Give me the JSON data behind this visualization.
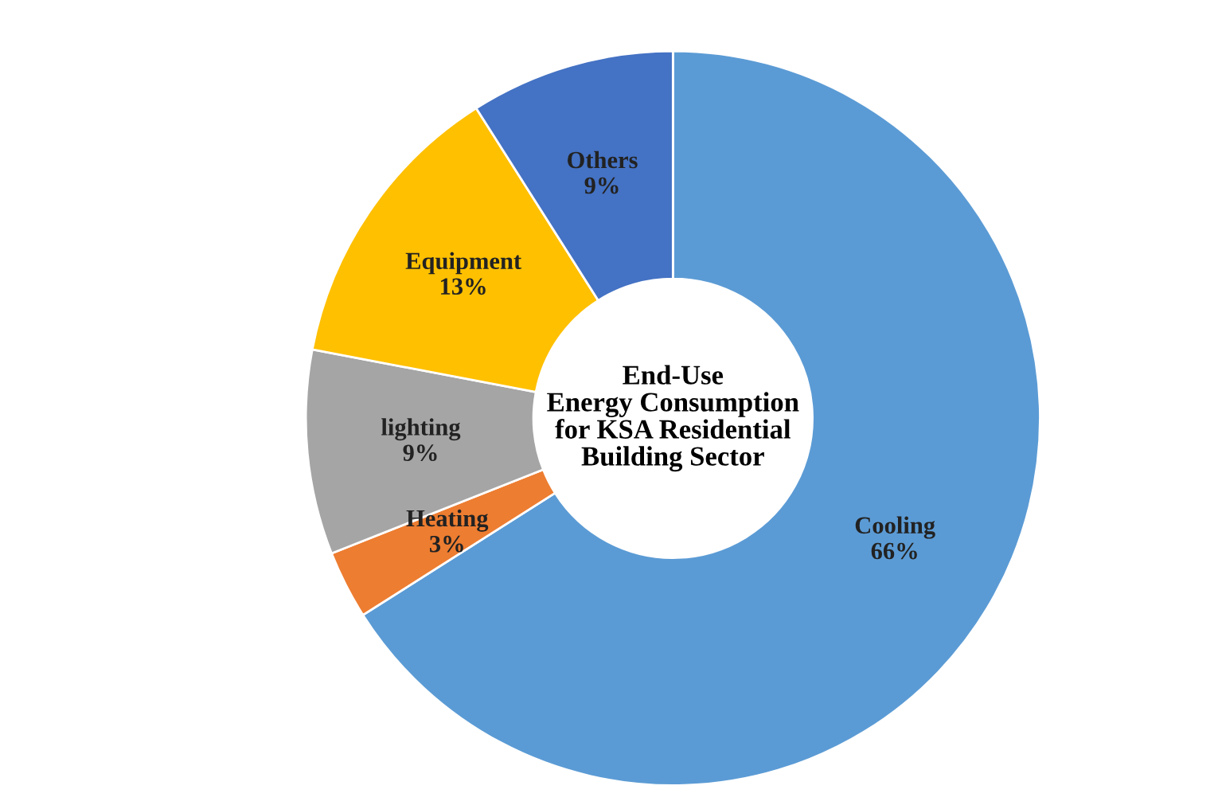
{
  "chart_data": {
    "type": "donut",
    "title": "End-Use\nEnergy Consumption\nfor KSA Residential\nBuilding Sector",
    "categories": [
      "Cooling",
      "Heating",
      "lighting",
      "Equipment",
      "Others"
    ],
    "values": [
      66,
      3,
      9,
      13,
      9
    ],
    "colors": [
      "#5b9bd5",
      "#ed7d31",
      "#a5a5a5",
      "#ffc000",
      "#4472c4"
    ],
    "value_labels": [
      "66%",
      "3%",
      "9%",
      "13%",
      "9%"
    ],
    "legend": false
  }
}
